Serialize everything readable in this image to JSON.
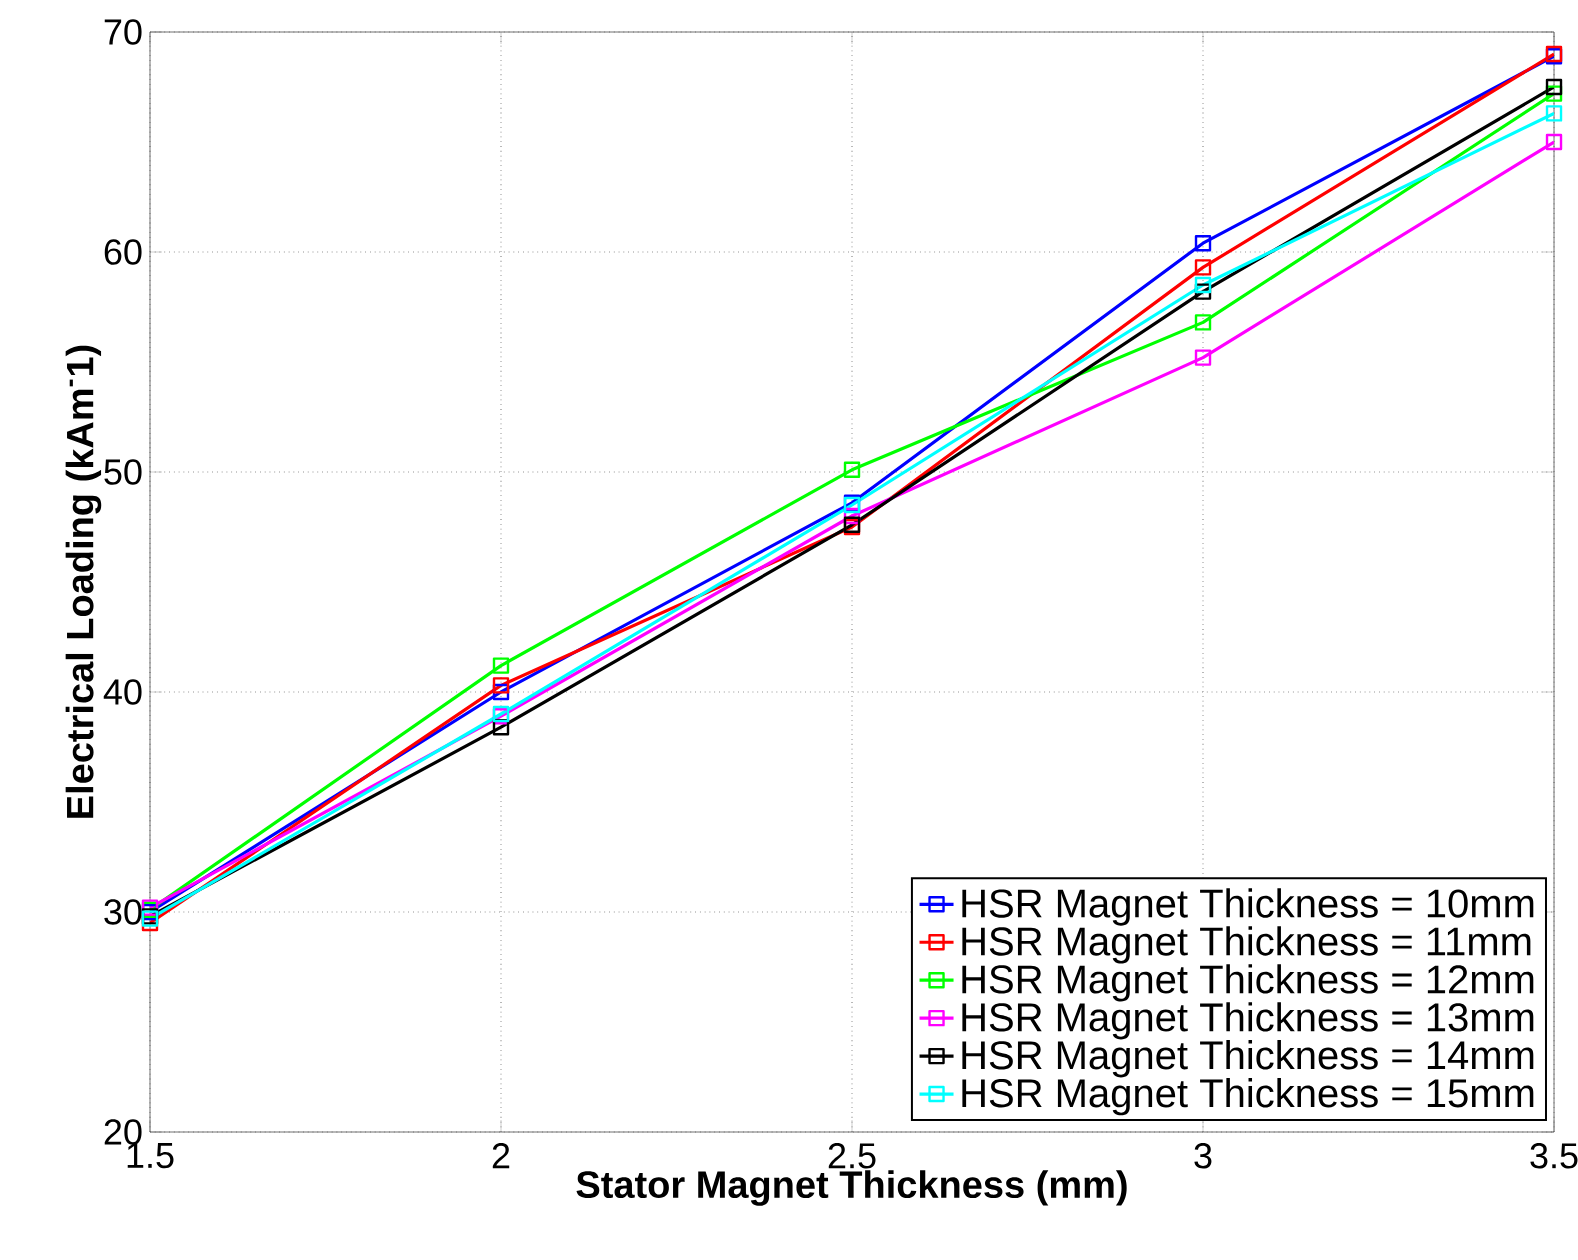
{
  "chart_data": {
    "type": "line",
    "xlabel": "Stator Magnet Thickness (mm)",
    "ylabel": "Electrical Loading (kAm$^{-}$1)",
    "x": [
      1.5,
      2,
      2.5,
      3,
      3.5
    ],
    "series": [
      {
        "name": "HSR Magnet Thickness = 10mm",
        "color": "#0000ff",
        "values": [
          30.0,
          40.0,
          48.6,
          60.4,
          68.9
        ]
      },
      {
        "name": "HSR Magnet Thickness = 11mm",
        "color": "#ff0000",
        "values": [
          29.5,
          40.3,
          47.5,
          59.3,
          69.0
        ]
      },
      {
        "name": "HSR Magnet Thickness = 12mm",
        "color": "#00ff00",
        "values": [
          30.1,
          41.2,
          50.1,
          56.8,
          67.2
        ]
      },
      {
        "name": "HSR Magnet Thickness = 13mm",
        "color": "#ff00ff",
        "values": [
          30.2,
          38.9,
          48.0,
          55.2,
          65.0
        ]
      },
      {
        "name": "HSR Magnet Thickness = 14mm",
        "color": "#000000",
        "values": [
          29.8,
          38.4,
          47.6,
          58.2,
          67.5
        ]
      },
      {
        "name": "HSR Magnet Thickness = 15mm",
        "color": "#00ffff",
        "values": [
          29.7,
          39.0,
          48.5,
          58.5,
          66.3
        ]
      }
    ],
    "xlim": [
      1.5,
      3.5
    ],
    "ylim": [
      20,
      70
    ],
    "xticks": [
      1.5,
      2,
      2.5,
      3,
      3.5
    ],
    "yticks": [
      20,
      30,
      40,
      50,
      60,
      70
    ],
    "grid": true,
    "legend": "bottom right",
    "marker": "square",
    "line_style": "solid"
  }
}
